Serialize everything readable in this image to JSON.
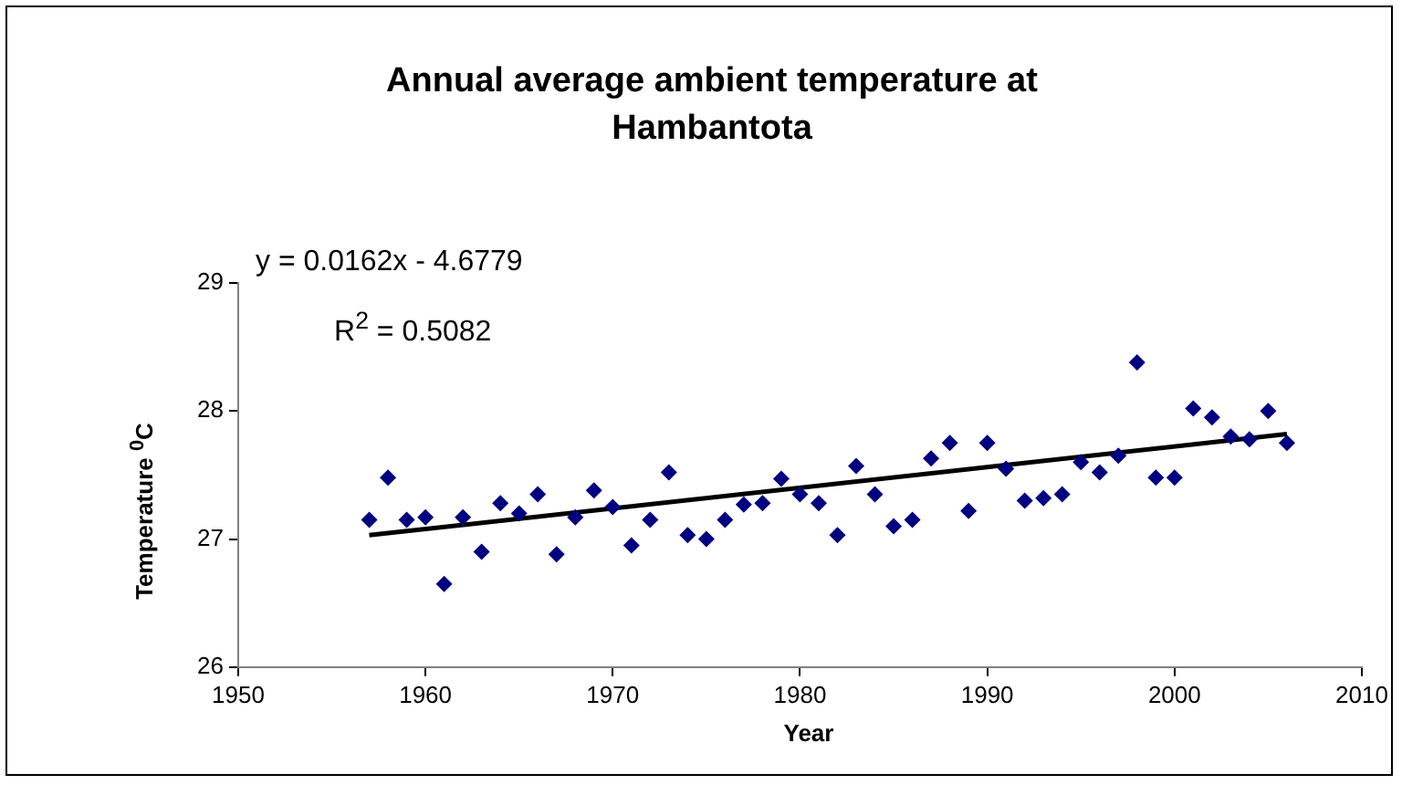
{
  "chart_data": {
    "type": "scatter",
    "title": "Annual average ambient temperature at Hambantota",
    "xlabel": "Year",
    "ylabel": "Temperature  $^{0}$C",
    "annotations": [
      "y = 0.0162x - 4.6779",
      "R$^{2}$ = 0.5082"
    ],
    "xlim": [
      1950,
      2010
    ],
    "xticks": [
      1950,
      1960,
      1970,
      1980,
      1990,
      2000,
      2010
    ],
    "ylim": [
      26,
      29
    ],
    "yticks": [
      26,
      27,
      28,
      29
    ],
    "grid": false,
    "legend": false,
    "marker": "diamond",
    "series": [
      {
        "type": "scatter",
        "color": "#000080",
        "x": [
          1957,
          1958,
          1959,
          1960,
          1961,
          1962,
          1963,
          1964,
          1965,
          1966,
          1967,
          1968,
          1969,
          1970,
          1971,
          1972,
          1973,
          1974,
          1975,
          1976,
          1977,
          1978,
          1979,
          1980,
          1981,
          1982,
          1983,
          1984,
          1985,
          1986,
          1987,
          1988,
          1989,
          1990,
          1991,
          1992,
          1993,
          1994,
          1995,
          1996,
          1997,
          1998,
          1999,
          2000,
          2001,
          2002,
          2003,
          2004,
          2005,
          2006
        ],
        "values": [
          27.15,
          27.48,
          27.15,
          27.17,
          26.65,
          27.17,
          26.9,
          27.28,
          27.2,
          27.35,
          26.88,
          27.17,
          27.38,
          27.25,
          26.95,
          27.15,
          27.52,
          27.03,
          27.0,
          27.15,
          27.27,
          27.28,
          27.47,
          27.35,
          27.28,
          27.03,
          27.57,
          27.35,
          27.1,
          27.15,
          27.63,
          27.75,
          27.22,
          27.75,
          27.55,
          27.3,
          27.32,
          27.35,
          27.6,
          27.52,
          27.65,
          28.38,
          27.48,
          27.48,
          28.02,
          27.95,
          27.8,
          27.78,
          28.0,
          27.75
        ]
      },
      {
        "type": "line",
        "color": "#000000",
        "marker": "none",
        "x": [
          1957,
          2006
        ],
        "values": [
          27.03,
          27.82
        ]
      }
    ]
  }
}
